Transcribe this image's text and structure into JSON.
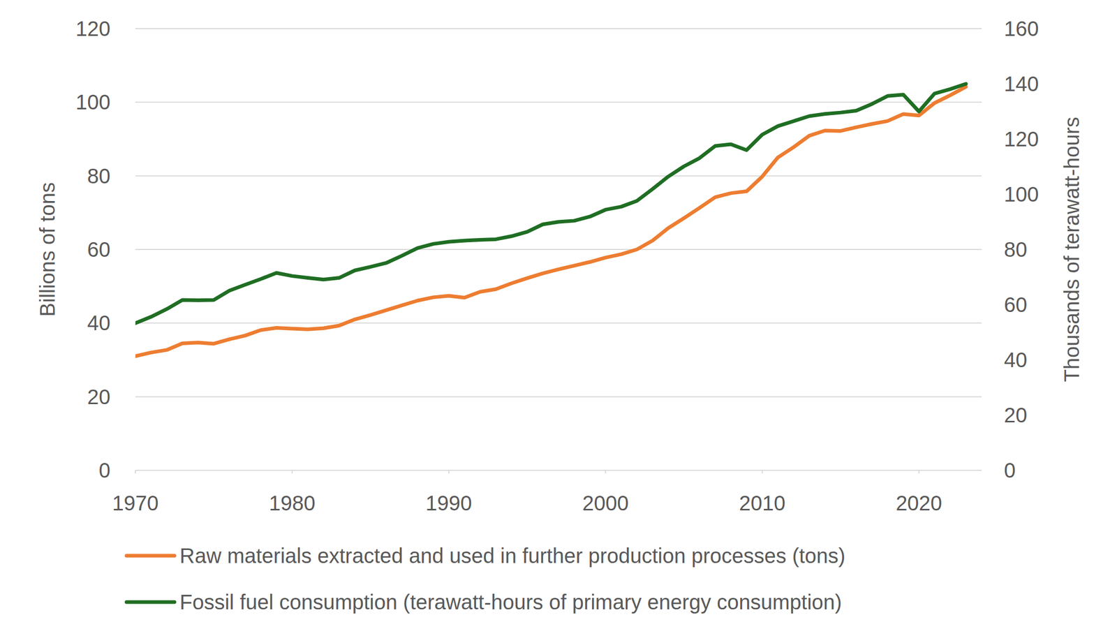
{
  "chart_data": {
    "type": "line",
    "x": [
      1970,
      1971,
      1972,
      1973,
      1974,
      1975,
      1976,
      1977,
      1978,
      1979,
      1980,
      1981,
      1982,
      1983,
      1984,
      1985,
      1986,
      1987,
      1988,
      1989,
      1990,
      1991,
      1992,
      1993,
      1994,
      1995,
      1996,
      1997,
      1998,
      1999,
      2000,
      2001,
      2002,
      2003,
      2004,
      2005,
      2006,
      2007,
      2008,
      2009,
      2010,
      2011,
      2012,
      2013,
      2014,
      2015,
      2016,
      2017,
      2018,
      2019,
      2020,
      2021,
      2022,
      2023
    ],
    "xlim": [
      1970,
      2024
    ],
    "xticks": [
      1970,
      1980,
      1990,
      2000,
      2010,
      2020
    ],
    "ylim": [
      0,
      120
    ],
    "yticks": [
      0,
      20,
      40,
      60,
      80,
      100,
      120
    ],
    "y2lim": [
      0,
      160
    ],
    "y2ticks": [
      0,
      20,
      40,
      60,
      80,
      100,
      120,
      140,
      160
    ],
    "y_label": "Billions of tons",
    "y2_label": "Thousands of terawatt-hours",
    "grid": true,
    "legend": "bottom",
    "series": [
      {
        "name": "Raw materials extracted and used in further production processes (tons)",
        "color": "#ed7d31",
        "axis": "y",
        "values": [
          31,
          32,
          32.7,
          34.5,
          34.7,
          34.4,
          35.6,
          36.6,
          38.1,
          38.7,
          38.5,
          38.3,
          38.6,
          39.3,
          41,
          42.2,
          43.5,
          44.8,
          46.1,
          47,
          47.4,
          46.9,
          48.5,
          49.2,
          50.8,
          52.2,
          53.5,
          54.6,
          55.6,
          56.6,
          57.8,
          58.7,
          60,
          62.4,
          65.8,
          68.5,
          71.3,
          74.2,
          75.3,
          75.8,
          79.8,
          85,
          87.8,
          90.9,
          92.3,
          92.2,
          93.2,
          94.1,
          94.9,
          96.8,
          96.4,
          99.8,
          101.9,
          104.2
        ]
      },
      {
        "name": "Fossil fuel consumption (terawatt-hours of primary energy consumption)",
        "color": "#1f6e23",
        "axis": "y2",
        "values": [
          53.3,
          55.6,
          58.4,
          61.7,
          61.6,
          61.7,
          65.1,
          67.2,
          69.3,
          71.5,
          70.4,
          69.7,
          69.1,
          69.7,
          72.4,
          73.7,
          75.1,
          77.7,
          80.5,
          82,
          82.8,
          83.2,
          83.5,
          83.7,
          84.8,
          86.4,
          89.1,
          90,
          90.4,
          91.9,
          94.4,
          95.5,
          97.6,
          101.9,
          106.4,
          110.1,
          113.1,
          117.5,
          118.1,
          116,
          121.6,
          124.7,
          126.5,
          128.3,
          129.1,
          129.6,
          130.3,
          132.7,
          135.6,
          136.1,
          130,
          136.5,
          138.1,
          140
        ]
      }
    ]
  }
}
